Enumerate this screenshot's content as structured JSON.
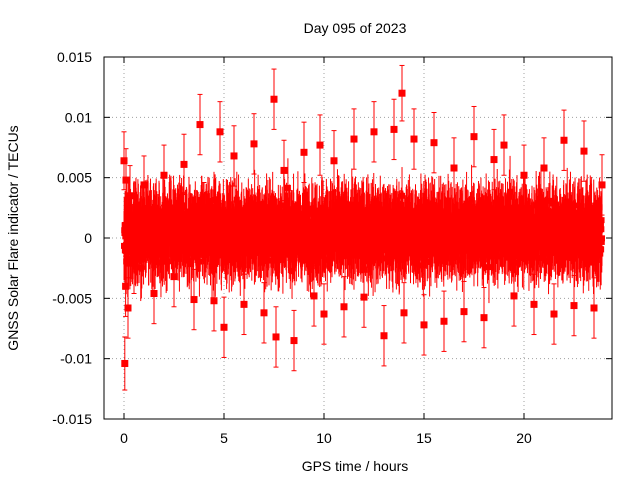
{
  "chart_data": {
    "type": "scatter",
    "title": "Day 095 of 2023",
    "xlabel": "GPS time / hours",
    "ylabel": "GNSS Solar Flare indicator / TECUs",
    "xlim": [
      -1,
      24.4
    ],
    "ylim": [
      -0.015,
      0.015
    ],
    "xticks": [
      0,
      5,
      10,
      15,
      20
    ],
    "xtick_labels": [
      "0",
      "5",
      "10",
      "15",
      "20"
    ],
    "yticks": [
      -0.015,
      -0.01,
      -0.005,
      0,
      0.005,
      0.01,
      0.015
    ],
    "ytick_labels": [
      "-0.015",
      "-0.01",
      "-0.005",
      "0",
      "0.005",
      "0.01",
      "0.015"
    ],
    "grid": true,
    "series_color": "#ff0000",
    "error_bars": true,
    "series": [
      {
        "x": [
          0.0,
          0.04,
          0.08,
          0.1,
          0.15,
          0.2,
          0.3,
          0.5,
          1.0,
          1.5,
          2.0,
          2.5,
          3.0,
          3.5,
          3.8,
          4.0,
          4.5,
          4.8,
          5.0,
          5.5,
          6.0,
          6.5,
          7.0,
          7.5,
          7.6,
          8.0,
          8.5,
          9.0,
          9.5,
          9.8,
          10.0,
          10.5,
          11.0,
          11.5,
          12.0,
          12.5,
          13.0,
          13.5,
          13.9,
          14.0,
          14.5,
          15.0,
          15.5,
          16.0,
          16.5,
          17.0,
          17.5,
          18.0,
          18.5,
          19.0,
          19.5,
          20.0,
          20.5,
          21.0,
          21.5,
          22.0,
          22.5,
          23.0,
          23.5,
          23.9
        ],
        "y": [
          0.0064,
          -0.0104,
          -0.004,
          0.0048,
          0.0012,
          -0.0058,
          0.0035,
          -0.0021,
          0.0044,
          -0.0046,
          0.0052,
          -0.0032,
          0.0061,
          -0.0051,
          0.0094,
          0.0021,
          -0.0052,
          0.0088,
          -0.0074,
          0.0068,
          -0.0055,
          0.0078,
          -0.0062,
          0.0115,
          -0.0082,
          0.0056,
          -0.0085,
          0.0071,
          -0.0048,
          0.0077,
          -0.0063,
          0.0064,
          -0.0057,
          0.0082,
          -0.0049,
          0.0088,
          -0.0081,
          0.009,
          0.012,
          -0.0062,
          0.0082,
          -0.0072,
          0.0079,
          -0.0069,
          0.0058,
          -0.0061,
          0.0084,
          -0.0066,
          0.0065,
          0.0077,
          -0.0048,
          0.0052,
          -0.0055,
          0.0058,
          -0.0063,
          0.0081,
          -0.0056,
          0.0072,
          -0.0058,
          0.0044
        ],
        "err": [
          0.0024,
          0.0022,
          0.0025,
          0.0026,
          0.0024,
          0.0025,
          0.0025,
          0.0025,
          0.0024,
          0.0025,
          0.0025,
          0.0025,
          0.0025,
          0.0025,
          0.0025,
          0.0025,
          0.0025,
          0.0025,
          0.0025,
          0.0025,
          0.0025,
          0.0025,
          0.0025,
          0.0025,
          0.0025,
          0.0025,
          0.0025,
          0.0025,
          0.0025,
          0.0025,
          0.0025,
          0.0025,
          0.0025,
          0.0025,
          0.0025,
          0.0025,
          0.0025,
          0.0025,
          0.0023,
          0.0025,
          0.0025,
          0.0025,
          0.0025,
          0.0025,
          0.0025,
          0.0025,
          0.0025,
          0.0025,
          0.0025,
          0.0025,
          0.0025,
          0.0025,
          0.0025,
          0.0025,
          0.0025,
          0.0025,
          0.0025,
          0.0025,
          0.0025,
          0.0025
        ]
      }
    ],
    "dense_band": {
      "x_range": [
        0,
        23.9
      ],
      "y_typical_range": [
        -0.0045,
        0.0055
      ],
      "note": "thousands of points with error bars forming a continuous band"
    }
  }
}
